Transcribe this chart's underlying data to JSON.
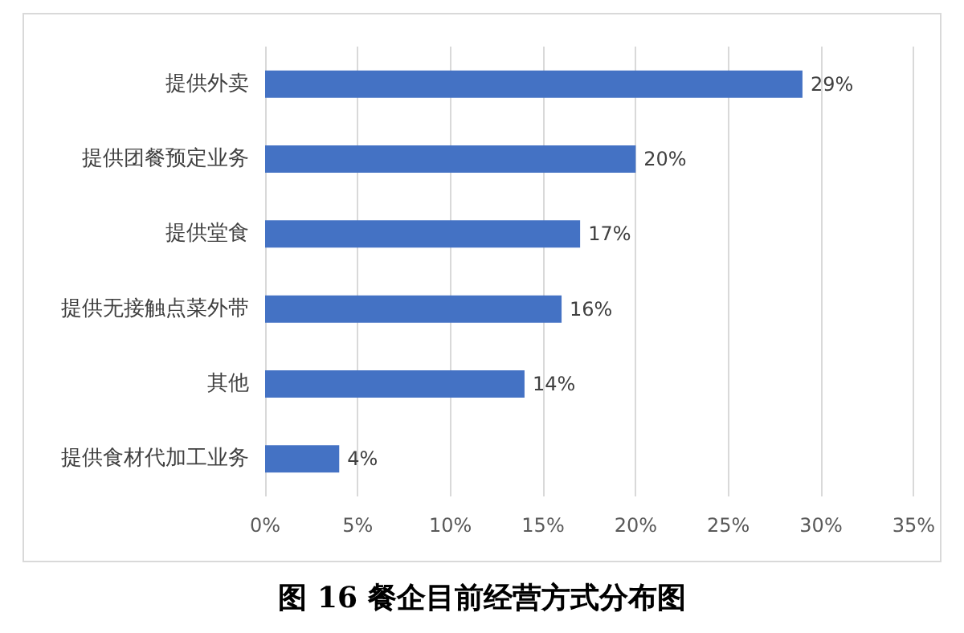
{
  "chart_data": {
    "type": "bar",
    "orientation": "horizontal",
    "title": "图 16  餐企目前经营方式分布图",
    "categories": [
      "提供外卖",
      "提供团餐预定业务",
      "提供堂食",
      "提供无接触点菜外带",
      "其他",
      "提供食材代加工业务"
    ],
    "values": [
      29,
      20,
      17,
      16,
      14,
      4
    ],
    "value_labels": [
      "29%",
      "20%",
      "17%",
      "16%",
      "14%",
      "4%"
    ],
    "color": "#4472c4",
    "xlim": [
      0,
      35
    ],
    "xticks": [
      {
        "value": 0,
        "label": "0%"
      },
      {
        "value": 5,
        "label": "5%"
      },
      {
        "value": 10,
        "label": "10%"
      },
      {
        "value": 15,
        "label": "15%"
      },
      {
        "value": 20,
        "label": "20%"
      },
      {
        "value": 25,
        "label": "25%"
      },
      {
        "value": 30,
        "label": "30%"
      },
      {
        "value": 35,
        "label": "35%"
      }
    ],
    "grid": "x"
  }
}
